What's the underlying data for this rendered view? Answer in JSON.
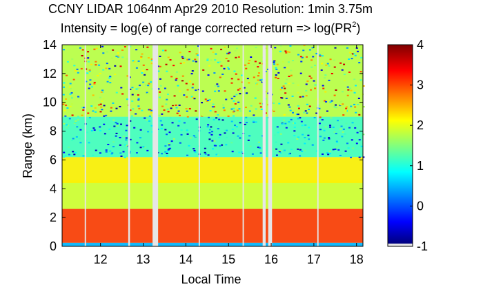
{
  "chart_data": {
    "type": "heatmap",
    "title_line1": "CCNY LIDAR 1064nm Apr29 2010 Resolution: 1min 3.75m",
    "title_line2_prefix": "Intensity = log(e) of range corrected return => log(PR",
    "title_line2_sup": "2",
    "title_line2_suffix": ")",
    "xlabel": "Local Time",
    "ylabel": "Range (km)",
    "xlim": [
      11.1,
      18.15
    ],
    "ylim": [
      0,
      14
    ],
    "xticks": [
      12,
      13,
      14,
      15,
      16,
      17,
      18
    ],
    "yticks": [
      0,
      2,
      4,
      6,
      8,
      10,
      12,
      14
    ],
    "colorbar": {
      "clim": [
        -1,
        4
      ],
      "ticks": [
        -1,
        0,
        1,
        2,
        3,
        4
      ]
    },
    "data_gaps": [
      {
        "start": 11.63,
        "end": 11.66
      },
      {
        "start": 12.65,
        "end": 12.69
      },
      {
        "start": 13.22,
        "end": 13.35
      },
      {
        "start": 14.3,
        "end": 14.33
      },
      {
        "start": 15.33,
        "end": 15.36
      },
      {
        "start": 15.8,
        "end": 15.87
      },
      {
        "start": 15.93,
        "end": 16.02
      },
      {
        "start": 17.08,
        "end": 17.11
      }
    ],
    "layers": [
      {
        "name": "near-surface",
        "bottom_km": 0,
        "top_km": 0.25,
        "intensity": 0.5
      },
      {
        "name": "boundary-layer",
        "bottom_km": 0.25,
        "top_km": 2.6,
        "intensity": 3.1
      },
      {
        "name": "lower-aerosol",
        "bottom_km": 2.6,
        "top_km": 4.6,
        "intensity": 1.9
      },
      {
        "name": "elevated-layer",
        "bottom_km": 4.4,
        "top_km": 6.2,
        "intensity": 2.2
      },
      {
        "name": "upper-troposphere",
        "bottom_km": 6.2,
        "top_km": 9,
        "intensity": 1.2
      },
      {
        "name": "noise-region",
        "bottom_km": 9,
        "top_km": 14,
        "intensity": 1.8
      }
    ]
  }
}
